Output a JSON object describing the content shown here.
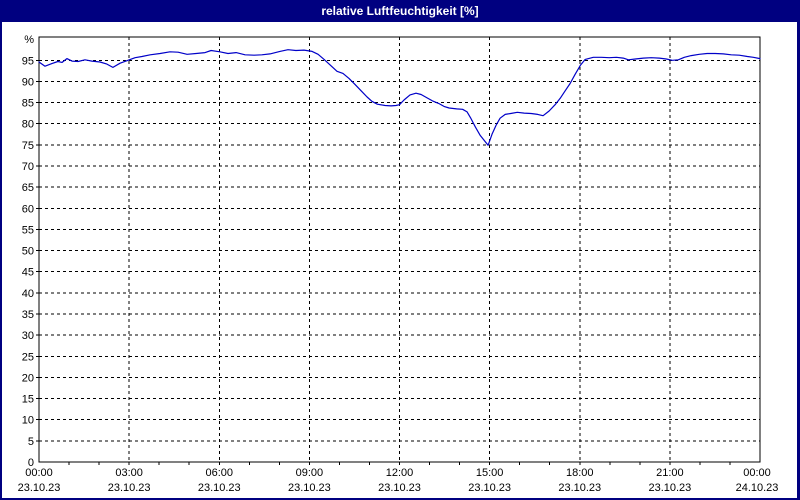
{
  "title": "relative Luftfeuchtigkeit [%]",
  "colors": {
    "titlebar_bg": "#000080",
    "titlebar_text": "#ffffff",
    "window_border": "#000080",
    "plot_background": "#ffffff",
    "grid": "#000000",
    "axis": "#000000",
    "series_line": "#0000c8",
    "label_text": "#000000"
  },
  "chart_data": {
    "type": "line",
    "title": "relative Luftfeuchtigkeit [%]",
    "xlabel": "",
    "ylabel": "%",
    "grid": "dashed",
    "legend": "none",
    "y_axis": {
      "unit_label": "%",
      "min": 0,
      "max": 100.5,
      "tick_step": 5,
      "tick_values": [
        95,
        90,
        85,
        80,
        75,
        70,
        65,
        60,
        55,
        50,
        45,
        40,
        35,
        30,
        25,
        20,
        15,
        10,
        5,
        0
      ]
    },
    "x_axis": {
      "span_hours": 24,
      "gridline_hours": [
        3,
        6,
        9,
        12,
        15,
        18,
        21
      ],
      "minor_tick_interval_hours": 1,
      "ticks": [
        {
          "hour": 0,
          "time": "00:00",
          "date": "23.10.23"
        },
        {
          "hour": 3,
          "time": "03:00",
          "date": "23.10.23"
        },
        {
          "hour": 6,
          "time": "06:00",
          "date": "23.10.23"
        },
        {
          "hour": 9,
          "time": "09:00",
          "date": "23.10.23"
        },
        {
          "hour": 12,
          "time": "12:00",
          "date": "23.10.23"
        },
        {
          "hour": 15,
          "time": "15:00",
          "date": "23.10.23"
        },
        {
          "hour": 18,
          "time": "18:00",
          "date": "23.10.23"
        },
        {
          "hour": 21,
          "time": "21:00",
          "date": "23.10.23"
        },
        {
          "hour": 24,
          "time": "00:00",
          "date": "24.10.23"
        }
      ]
    },
    "series": [
      {
        "name": "relative Luftfeuchtigkeit",
        "unit": "%",
        "color": "#0000c8",
        "points": [
          [
            0.0,
            94.6
          ],
          [
            0.2,
            93.6
          ],
          [
            0.43,
            94.2
          ],
          [
            0.63,
            94.7
          ],
          [
            0.77,
            94.5
          ],
          [
            0.93,
            95.4
          ],
          [
            1.1,
            94.8
          ],
          [
            1.3,
            94.7
          ],
          [
            1.53,
            95.1
          ],
          [
            1.76,
            94.8
          ],
          [
            2.03,
            94.6
          ],
          [
            2.26,
            94.1
          ],
          [
            2.46,
            93.3
          ],
          [
            2.7,
            94.3
          ],
          [
            2.93,
            94.9
          ],
          [
            3.2,
            95.6
          ],
          [
            3.43,
            95.9
          ],
          [
            3.7,
            96.3
          ],
          [
            4.03,
            96.6
          ],
          [
            4.36,
            97.0
          ],
          [
            4.63,
            96.9
          ],
          [
            4.93,
            96.4
          ],
          [
            5.23,
            96.6
          ],
          [
            5.53,
            96.8
          ],
          [
            5.73,
            97.3
          ],
          [
            6.02,
            97.0
          ],
          [
            6.29,
            96.6
          ],
          [
            6.56,
            96.8
          ],
          [
            6.86,
            96.3
          ],
          [
            7.16,
            96.2
          ],
          [
            7.42,
            96.3
          ],
          [
            7.69,
            96.5
          ],
          [
            8.02,
            97.1
          ],
          [
            8.29,
            97.5
          ],
          [
            8.55,
            97.3
          ],
          [
            8.82,
            97.4
          ],
          [
            9.09,
            97.1
          ],
          [
            9.29,
            96.4
          ],
          [
            9.49,
            95.2
          ],
          [
            9.69,
            93.9
          ],
          [
            9.92,
            92.4
          ],
          [
            10.12,
            91.9
          ],
          [
            10.32,
            90.7
          ],
          [
            10.52,
            89.3
          ],
          [
            10.72,
            87.8
          ],
          [
            10.92,
            86.3
          ],
          [
            11.08,
            85.3
          ],
          [
            11.26,
            84.6
          ],
          [
            11.52,
            84.3
          ],
          [
            11.72,
            84.2
          ],
          [
            11.88,
            84.3
          ],
          [
            12.0,
            84.5
          ],
          [
            12.15,
            85.6
          ],
          [
            12.35,
            86.8
          ],
          [
            12.55,
            87.2
          ],
          [
            12.72,
            86.9
          ],
          [
            12.92,
            86.1
          ],
          [
            13.1,
            85.4
          ],
          [
            13.3,
            84.8
          ],
          [
            13.48,
            84.1
          ],
          [
            13.65,
            83.7
          ],
          [
            13.9,
            83.5
          ],
          [
            14.1,
            83.4
          ],
          [
            14.25,
            82.8
          ],
          [
            14.38,
            81.2
          ],
          [
            14.52,
            79.3
          ],
          [
            14.68,
            77.3
          ],
          [
            14.95,
            74.9
          ],
          [
            15.08,
            77.5
          ],
          [
            15.22,
            79.7
          ],
          [
            15.35,
            81.3
          ],
          [
            15.52,
            82.2
          ],
          [
            15.7,
            82.4
          ],
          [
            15.92,
            82.7
          ],
          [
            16.15,
            82.5
          ],
          [
            16.38,
            82.4
          ],
          [
            16.6,
            82.2
          ],
          [
            16.78,
            81.9
          ],
          [
            16.98,
            83.0
          ],
          [
            17.18,
            84.5
          ],
          [
            17.35,
            86.0
          ],
          [
            17.51,
            87.7
          ],
          [
            17.68,
            89.5
          ],
          [
            17.85,
            91.7
          ],
          [
            18.02,
            93.8
          ],
          [
            18.18,
            95.2
          ],
          [
            18.45,
            95.7
          ],
          [
            18.72,
            95.7
          ],
          [
            18.98,
            95.6
          ],
          [
            19.22,
            95.7
          ],
          [
            19.45,
            95.5
          ],
          [
            19.62,
            95.1
          ],
          [
            19.85,
            95.3
          ],
          [
            20.12,
            95.5
          ],
          [
            20.38,
            95.6
          ],
          [
            20.65,
            95.5
          ],
          [
            20.88,
            95.3
          ],
          [
            21.08,
            95.0
          ],
          [
            21.28,
            95.1
          ],
          [
            21.48,
            95.7
          ],
          [
            21.71,
            96.1
          ],
          [
            21.98,
            96.4
          ],
          [
            22.24,
            96.6
          ],
          [
            22.51,
            96.6
          ],
          [
            22.78,
            96.5
          ],
          [
            23.04,
            96.3
          ],
          [
            23.31,
            96.2
          ],
          [
            23.58,
            95.9
          ],
          [
            23.78,
            95.7
          ],
          [
            24.0,
            95.4
          ]
        ]
      }
    ]
  }
}
